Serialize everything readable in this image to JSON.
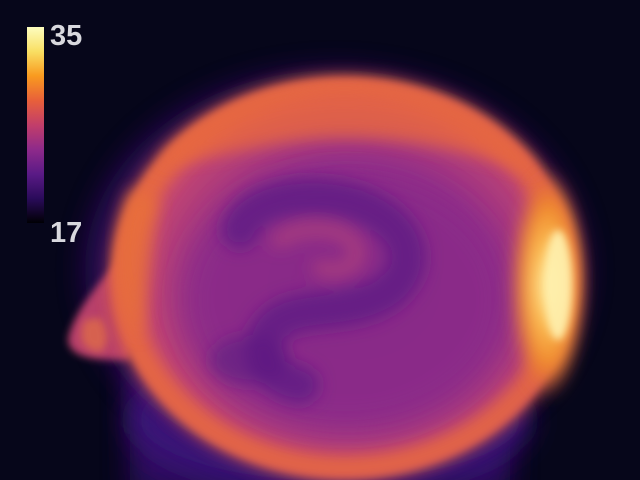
{
  "thermal_view": {
    "scale": {
      "max_label": "35",
      "min_label": "17",
      "colors": [
        "#000004",
        "#2a0b5a",
        "#5a1a86",
        "#8e2a8a",
        "#c23e6a",
        "#e8603a",
        "#f99a1f",
        "#f9df63",
        "#fcfdbf"
      ]
    },
    "scene_colors": {
      "background": "#06061a",
      "body": "#8f2e8a",
      "rim": "#e8683a",
      "hotspot": "#ffd070",
      "swirl": "#5c1e84",
      "neck": "#3c147a"
    }
  }
}
